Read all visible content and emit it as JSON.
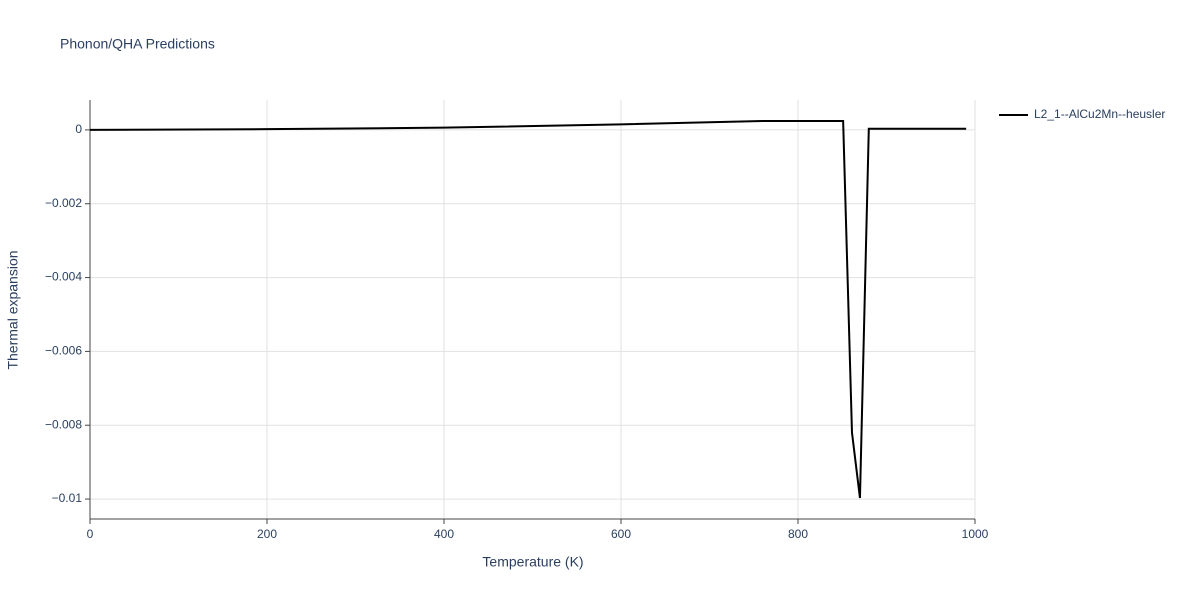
{
  "chart_data": {
    "type": "line",
    "title": "Phonon/QHA Predictions",
    "x_label": "Temperature (K)",
    "y_label": "Thermal expansion",
    "x": [
      0,
      200,
      400,
      600,
      760,
      851,
      861,
      870,
      880,
      990
    ],
    "series": [
      {
        "name": "L2_1--AlCu2Mn--heusler",
        "color": "#000000",
        "values": [
          0,
          2e-05,
          6e-05,
          0.00015,
          0.00024,
          0.00024,
          -0.0082,
          -0.00997,
          3e-05,
          3e-05
        ]
      }
    ],
    "xlim": [
      0,
      1000
    ],
    "xticks": [
      0,
      200,
      400,
      600,
      800,
      1000
    ],
    "ylim": [
      -0.01054,
      0.00081
    ],
    "yticks": [
      0,
      {
        "value": -0.002,
        "label": "−0.002"
      },
      {
        "value": -0.004,
        "label": "−0.004"
      },
      {
        "value": -0.006,
        "label": "−0.006"
      },
      {
        "value": -0.008,
        "label": "−0.008"
      },
      {
        "value": -0.01,
        "label": "−0.01"
      }
    ],
    "grid": true,
    "legend": "right"
  }
}
